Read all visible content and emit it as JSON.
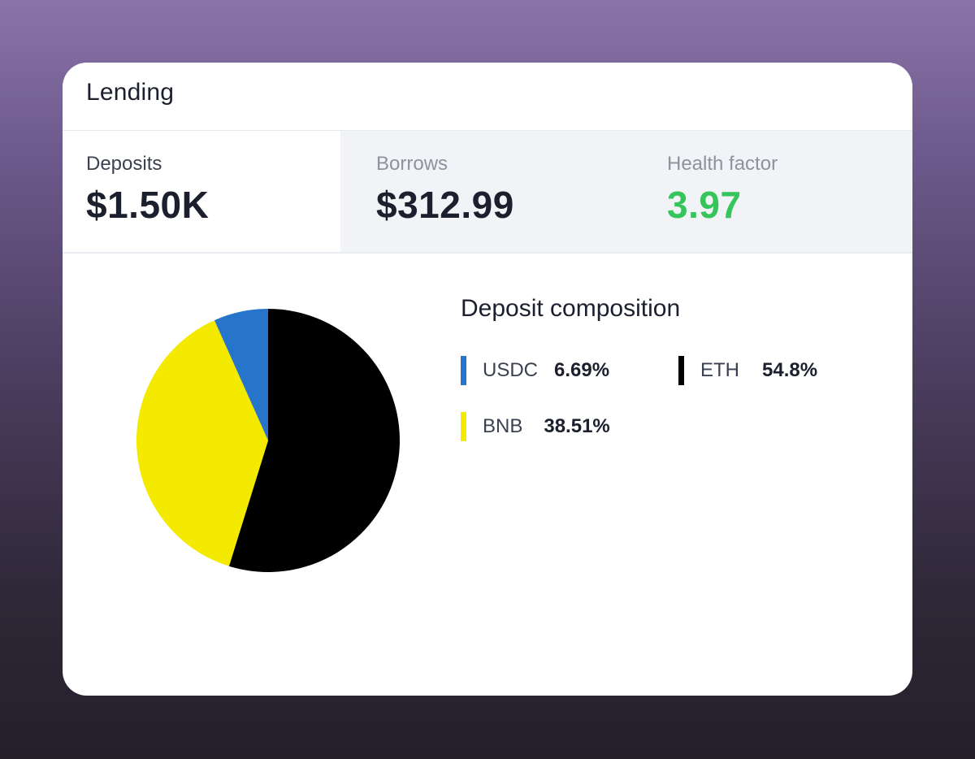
{
  "header": {
    "title": "Lending"
  },
  "tabs": [
    {
      "label": "Deposits",
      "value": "$1.50K"
    },
    {
      "label": "Borrows",
      "value": "$312.99"
    },
    {
      "label": "Health factor",
      "value": "3.97"
    }
  ],
  "colors": {
    "health_good": "#35c55a",
    "usdc": "#2775ca",
    "eth": "#000000",
    "bnb": "#f3ea00"
  },
  "composition": {
    "title": "Deposit composition",
    "items": [
      {
        "name": "USDC",
        "percent": "6.69%",
        "color": "#2775ca"
      },
      {
        "name": "ETH",
        "percent": "54.8%",
        "color": "#000000"
      },
      {
        "name": "BNB",
        "percent": "38.51%",
        "color": "#f3ea00"
      }
    ]
  },
  "chart_data": {
    "type": "pie",
    "title": "Deposit composition",
    "categories": [
      "ETH",
      "BNB",
      "USDC"
    ],
    "values": [
      54.8,
      38.51,
      6.69
    ],
    "colors": [
      "#000000",
      "#f3ea00",
      "#2775ca"
    ],
    "legend": "right"
  }
}
